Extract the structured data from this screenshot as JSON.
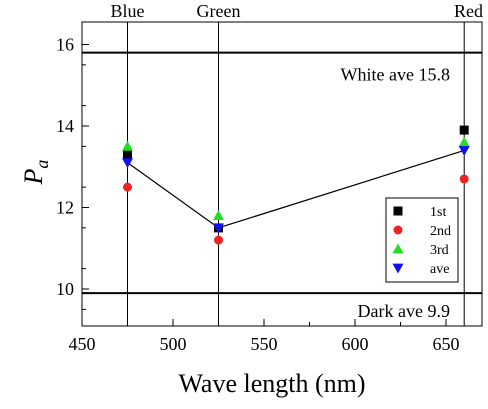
{
  "chart_data": {
    "type": "scatter",
    "xlabel": "Wave length (nm)",
    "ylabel_main": "P",
    "ylabel_sub": "a",
    "xlim": [
      450,
      670
    ],
    "ylim": [
      9.2,
      16.5
    ],
    "x_ticks": [
      450,
      500,
      550,
      600,
      650
    ],
    "y_ticks": [
      10,
      12,
      14,
      16
    ],
    "x_tick_labels": [
      "450",
      "500",
      "550",
      "600",
      "650"
    ],
    "y_tick_labels": [
      "10",
      "12",
      "14",
      "16"
    ],
    "grid": false,
    "vertical_markers": [
      {
        "x": 475,
        "label": "Blue"
      },
      {
        "x": 525,
        "label": "Green"
      },
      {
        "x": 660,
        "label": "Red"
      }
    ],
    "reference_lines": [
      {
        "y": 15.8,
        "label": "White ave 15.8"
      },
      {
        "y": 9.9,
        "label": "Dark ave 9.9"
      }
    ],
    "x": [
      475,
      525,
      660
    ],
    "series": [
      {
        "name": "1st",
        "marker": "square",
        "color": "#000000",
        "values": [
          13.3,
          11.5,
          13.9
        ]
      },
      {
        "name": "2nd",
        "marker": "circle",
        "color": "#ee2222",
        "values": [
          12.5,
          11.2,
          12.7
        ]
      },
      {
        "name": "3rd",
        "marker": "triangle-up",
        "color": "#22dd22",
        "values": [
          13.5,
          11.8,
          13.6
        ]
      },
      {
        "name": "ave",
        "marker": "triangle-down",
        "color": "#1111ee",
        "values": [
          13.1,
          11.5,
          13.4
        ],
        "line": true
      }
    ],
    "legend_position": "bottom-right"
  }
}
